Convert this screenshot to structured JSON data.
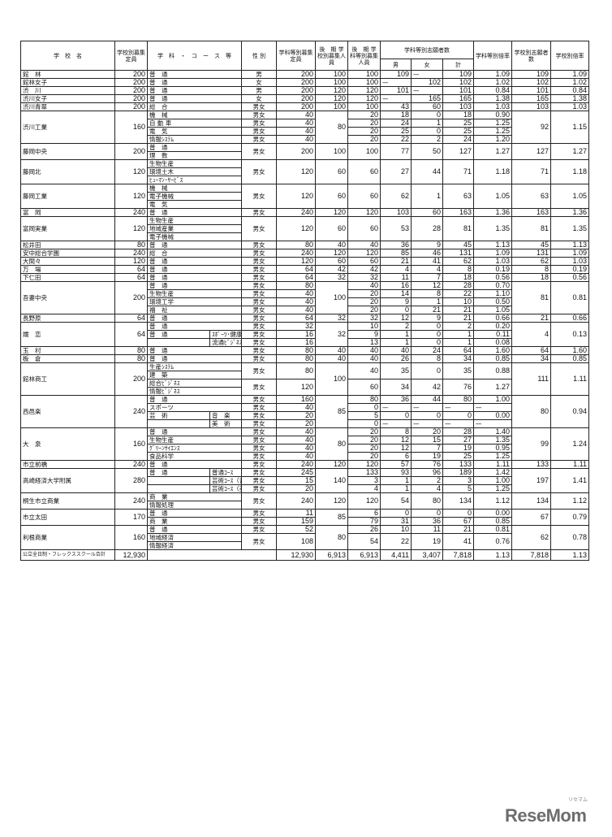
{
  "header": {
    "school_name": "学　校　名",
    "school_quota": "学校別募集定員",
    "subject": "学　科　・　コ　ー　ス　等",
    "sex": "性 別",
    "dept_quota": "学科等別募集定員",
    "late_school": "後　期 学校別募集人員",
    "late_dept": "後　期 学科等別募集人員",
    "applicants": "学科等別志願者数",
    "male": "男",
    "female": "女",
    "total": "計",
    "dept_ratio": "学科等別倍率",
    "school_applicants": "学校別志願者数",
    "school_ratio": "学校別倍率"
  },
  "schools": [
    {
      "name": "館　林",
      "quota": "200",
      "late": "100",
      "apps": "109",
      "ratio": "1.09",
      "groups": [
        {
          "sub": [
            "普　通"
          ],
          "sex": "男",
          "cap": "200",
          "ld": "100",
          "m": "109",
          "f": "—",
          "t": "109",
          "r": "1.09"
        }
      ]
    },
    {
      "name": "館林女子",
      "quota": "200",
      "late": "100",
      "apps": "102",
      "ratio": "1.02",
      "groups": [
        {
          "sub": [
            "普　通"
          ],
          "sex": "女",
          "cap": "200",
          "ld": "100",
          "m": "—",
          "f": "102",
          "t": "102",
          "r": "1.02"
        }
      ]
    },
    {
      "name": "渋　川",
      "quota": "200",
      "late": "120",
      "apps": "101",
      "ratio": "0.84",
      "groups": [
        {
          "sub": [
            "普　通"
          ],
          "sex": "男",
          "cap": "200",
          "ld": "120",
          "m": "101",
          "f": "—",
          "t": "101",
          "r": "0.84"
        }
      ]
    },
    {
      "name": "渋川女子",
      "quota": "200",
      "late": "120",
      "apps": "165",
      "ratio": "1.38",
      "groups": [
        {
          "sub": [
            "普　通"
          ],
          "sex": "女",
          "cap": "200",
          "ld": "120",
          "m": "—",
          "f": "165",
          "t": "165",
          "r": "1.38"
        }
      ]
    },
    {
      "name": "渋川青翠",
      "quota": "200",
      "late": "100",
      "apps": "103",
      "ratio": "1.03",
      "groups": [
        {
          "sub": [
            "総　合"
          ],
          "sex": "男女",
          "cap": "200",
          "ld": "100",
          "m": "43",
          "f": "60",
          "t": "103",
          "r": "1.03"
        }
      ]
    },
    {
      "name": "渋川工業",
      "quota": "160",
      "late": "80",
      "apps": "92",
      "ratio": "1.15",
      "groups": [
        {
          "sub": [
            "機　械"
          ],
          "sex": "男女",
          "cap": "40",
          "ld": "20",
          "m": "18",
          "f": "0",
          "t": "18",
          "r": "0.90"
        },
        {
          "sub": [
            "自 動 車"
          ],
          "sex": "男女",
          "cap": "40",
          "ld": "20",
          "m": "24",
          "f": "1",
          "t": "25",
          "r": "1.25"
        },
        {
          "sub": [
            "電　気"
          ],
          "sex": "男女",
          "cap": "40",
          "ld": "20",
          "m": "25",
          "f": "0",
          "t": "25",
          "r": "1.25"
        },
        {
          "sub": [
            "情報ｼｽﾃﾑ"
          ],
          "sex": "男女",
          "cap": "40",
          "ld": "20",
          "m": "22",
          "f": "2",
          "t": "24",
          "r": "1.20"
        }
      ]
    },
    {
      "name": "藤岡中央",
      "quota": "200",
      "late": "100",
      "apps": "127",
      "ratio": "1.27",
      "groups": [
        {
          "sub": [
            "普　通",
            "理　数"
          ],
          "sex": "男女",
          "cap": "200",
          "ld": "100",
          "m": "77",
          "f": "50",
          "t": "127",
          "r": "1.27"
        }
      ]
    },
    {
      "name": "藤岡北",
      "quota": "120",
      "late": "60",
      "apps": "71",
      "ratio": "1.18",
      "groups": [
        {
          "sub": [
            "生物生産",
            "環境土木",
            "ﾋｭｰﾏﾝ･ｻｰﾋﾞｽ"
          ],
          "sex": "男女",
          "cap": "120",
          "ld": "60",
          "m": "27",
          "f": "44",
          "t": "71",
          "r": "1.18"
        }
      ]
    },
    {
      "name": "藤岡工業",
      "quota": "120",
      "late": "60",
      "apps": "63",
      "ratio": "1.05",
      "groups": [
        {
          "sub": [
            "機　械",
            "電子機械",
            "電　気"
          ],
          "sex": "男女",
          "cap": "120",
          "ld": "60",
          "m": "62",
          "f": "1",
          "t": "63",
          "r": "1.05"
        }
      ]
    },
    {
      "name": "富　岡",
      "quota": "240",
      "late": "120",
      "apps": "163",
      "ratio": "1.36",
      "groups": [
        {
          "sub": [
            "普　通"
          ],
          "sex": "男女",
          "cap": "240",
          "ld": "120",
          "m": "103",
          "f": "60",
          "t": "163",
          "r": "1.36"
        }
      ]
    },
    {
      "name": "富岡実業",
      "quota": "120",
      "late": "60",
      "apps": "81",
      "ratio": "1.35",
      "groups": [
        {
          "sub": [
            "生物生産",
            "地域産業",
            "電子機械"
          ],
          "sex": "男女",
          "cap": "120",
          "ld": "60",
          "m": "53",
          "f": "28",
          "t": "81",
          "r": "1.35"
        }
      ]
    },
    {
      "name": "松井田",
      "quota": "80",
      "late": "40",
      "apps": "45",
      "ratio": "1.13",
      "groups": [
        {
          "sub": [
            "普　通"
          ],
          "sex": "男女",
          "cap": "80",
          "ld": "40",
          "m": "36",
          "f": "9",
          "t": "45",
          "r": "1.13"
        }
      ]
    },
    {
      "name": "安中総合学園",
      "quota": "240",
      "late": "120",
      "apps": "131",
      "ratio": "1.09",
      "groups": [
        {
          "sub": [
            "総　合"
          ],
          "sex": "男女",
          "cap": "240",
          "ld": "120",
          "m": "85",
          "f": "46",
          "t": "131",
          "r": "1.09"
        }
      ]
    },
    {
      "name": "大間々",
      "quota": "120",
      "late": "60",
      "apps": "62",
      "ratio": "1.03",
      "groups": [
        {
          "sub": [
            "普　通"
          ],
          "sex": "男女",
          "cap": "120",
          "ld": "60",
          "m": "21",
          "f": "41",
          "t": "62",
          "r": "1.03"
        }
      ]
    },
    {
      "name": "万　場",
      "quota": "64",
      "late": "42",
      "apps": "8",
      "ratio": "0.19",
      "groups": [
        {
          "sub": [
            "普　通"
          ],
          "sex": "男女",
          "cap": "64",
          "ld": "42",
          "m": "4",
          "f": "4",
          "t": "8",
          "r": "0.19"
        }
      ]
    },
    {
      "name": "下仁田",
      "quota": "64",
      "late": "32",
      "apps": "18",
      "ratio": "0.56",
      "groups": [
        {
          "sub": [
            "普　通"
          ],
          "sex": "男女",
          "cap": "64",
          "ld": "32",
          "m": "11",
          "f": "7",
          "t": "18",
          "r": "0.56"
        }
      ]
    },
    {
      "name": "吾妻中央",
      "quota": "200",
      "late": "100",
      "apps": "81",
      "ratio": "0.81",
      "groups": [
        {
          "sub": [
            "普　通"
          ],
          "sex": "男女",
          "cap": "80",
          "ld": "40",
          "m": "16",
          "f": "12",
          "t": "28",
          "r": "0.70"
        },
        {
          "sub": [
            "生物生産"
          ],
          "sex": "男女",
          "cap": "40",
          "ld": "20",
          "m": "14",
          "f": "8",
          "t": "22",
          "r": "1.10"
        },
        {
          "sub": [
            "環境工学"
          ],
          "sex": "男女",
          "cap": "40",
          "ld": "20",
          "m": "9",
          "f": "1",
          "t": "10",
          "r": "0.50"
        },
        {
          "sub": [
            "福　祉"
          ],
          "sex": "男女",
          "cap": "40",
          "ld": "20",
          "m": "0",
          "f": "21",
          "t": "21",
          "r": "1.05"
        }
      ]
    },
    {
      "name": "長野原",
      "quota": "64",
      "late": "32",
      "apps": "21",
      "ratio": "0.66",
      "groups": [
        {
          "sub": [
            "普　通"
          ],
          "sex": "男女",
          "cap": "64",
          "ld": "32",
          "m": "12",
          "f": "9",
          "t": "21",
          "r": "0.66"
        }
      ]
    },
    {
      "name": "嬬　恋",
      "quota": "64",
      "late": "32",
      "apps": "4",
      "ratio": "0.13",
      "groups": [
        {
          "sub": [
            "普　通"
          ],
          "sex": "男女",
          "cap": "32",
          "ld": "10",
          "m": "2",
          "f": "0",
          "t": "2",
          "r": "0.20"
        },
        {
          "sub": [
            "普　通"
          ],
          "course": "ｽﾎﾟｰﾂ･健康",
          "sex": "男女",
          "cap": "16",
          "ld": "9",
          "m": "1",
          "f": "0",
          "t": "1",
          "r": "0.11"
        },
        {
          "sub": [
            ""
          ],
          "cont": true,
          "course": "流通ﾋﾞｼﾞﾈｽ",
          "sex": "男女",
          "cap": "16",
          "ld": "13",
          "m": "1",
          "f": "0",
          "t": "1",
          "r": "0.08"
        }
      ]
    },
    {
      "name": "玉　村",
      "quota": "80",
      "late": "40",
      "apps": "64",
      "ratio": "1.60",
      "groups": [
        {
          "sub": [
            "普　通"
          ],
          "sex": "男女",
          "cap": "80",
          "ld": "40",
          "m": "40",
          "f": "24",
          "t": "64",
          "r": "1.60"
        }
      ]
    },
    {
      "name": "板　倉",
      "quota": "80",
      "late": "40",
      "apps": "34",
      "ratio": "0.85",
      "groups": [
        {
          "sub": [
            "普　通"
          ],
          "sex": "男女",
          "cap": "80",
          "ld": "40",
          "m": "26",
          "f": "8",
          "t": "34",
          "r": "0.85"
        }
      ]
    },
    {
      "name": "館林商工",
      "quota": "200",
      "late": "100",
      "apps": "111",
      "ratio": "1.11",
      "groups": [
        {
          "sub": [
            "生産ｼｽﾃﾑ",
            "建　築"
          ],
          "sex": "男女",
          "cap": "80",
          "ld": "40",
          "m": "35",
          "f": "0",
          "t": "35",
          "r": "0.88"
        },
        {
          "sub": [
            "総合ﾋﾞｼﾞﾈｽ",
            "情報ﾋﾞｼﾞﾈｽ"
          ],
          "sex": "男女",
          "cap": "120",
          "ld": "60",
          "m": "34",
          "f": "42",
          "t": "76",
          "r": "1.27"
        }
      ]
    },
    {
      "name": "西邑楽",
      "quota": "240",
      "late": "85",
      "apps": "80",
      "ratio": "0.94",
      "groups": [
        {
          "sub": [
            "普　通"
          ],
          "sex": "男女",
          "cap": "160",
          "ld": "80",
          "m": "36",
          "f": "44",
          "t": "80",
          "r": "1.00"
        },
        {
          "sub": [
            "スポーツ"
          ],
          "sex": "男女",
          "cap": "40",
          "ld": "0",
          "m": "—",
          "f": "—",
          "t": "—",
          "r": "—"
        },
        {
          "sub": [
            "芸　術"
          ],
          "course": "音　楽",
          "sex": "男女",
          "cap": "20",
          "ld": "5",
          "m": "0",
          "f": "0",
          "t": "0",
          "r": "0.00"
        },
        {
          "sub": [
            ""
          ],
          "cont": true,
          "course": "美　術",
          "sex": "男女",
          "cap": "20",
          "ld": "0",
          "m": "—",
          "f": "—",
          "t": "—",
          "r": "—"
        }
      ]
    },
    {
      "name": "大　泉",
      "quota": "160",
      "late": "80",
      "apps": "99",
      "ratio": "1.24",
      "groups": [
        {
          "sub": [
            "普　通"
          ],
          "sex": "男女",
          "cap": "40",
          "ld": "20",
          "m": "8",
          "f": "20",
          "t": "28",
          "r": "1.40"
        },
        {
          "sub": [
            "生物生産"
          ],
          "sex": "男女",
          "cap": "40",
          "ld": "20",
          "m": "12",
          "f": "15",
          "t": "27",
          "r": "1.35"
        },
        {
          "sub": [
            "ｸﾞﾘｰﾝｻｲｴﾝｽ"
          ],
          "sex": "男女",
          "cap": "40",
          "ld": "20",
          "m": "12",
          "f": "7",
          "t": "19",
          "r": "0.95"
        },
        {
          "sub": [
            "食品科学"
          ],
          "sex": "男女",
          "cap": "40",
          "ld": "20",
          "m": "6",
          "f": "19",
          "t": "25",
          "r": "1.25"
        }
      ]
    },
    {
      "name": "市立前橋",
      "quota": "240",
      "late": "120",
      "apps": "133",
      "ratio": "1.11",
      "groups": [
        {
          "sub": [
            "普　通"
          ],
          "sex": "男女",
          "cap": "240",
          "ld": "120",
          "m": "57",
          "f": "76",
          "t": "133",
          "r": "1.11"
        }
      ]
    },
    {
      "name": "高崎経済大学附属",
      "quota": "280",
      "late": "140",
      "apps": "197",
      "ratio": "1.41",
      "groups": [
        {
          "sub": [
            "普　通"
          ],
          "course": "普通ｺｰｽ",
          "sex": "男女",
          "cap": "245",
          "ld": "133",
          "m": "93",
          "f": "96",
          "t": "189",
          "r": "1.42"
        },
        {
          "sub": [
            ""
          ],
          "cont": true,
          "course": "芸術ｺｰｽ（音楽系）",
          "sex": "男女",
          "cap": "15",
          "ld": "3",
          "m": "1",
          "f": "2",
          "t": "3",
          "r": "1.00"
        },
        {
          "sub": [
            ""
          ],
          "cont": true,
          "course": "芸術ｺｰｽ（美術系）",
          "sex": "男女",
          "cap": "20",
          "ld": "4",
          "m": "1",
          "f": "4",
          "t": "5",
          "r": "1.25"
        }
      ]
    },
    {
      "name": "桐生市立商業",
      "quota": "240",
      "late": "120",
      "apps": "134",
      "ratio": "1.12",
      "groups": [
        {
          "sub": [
            "商　業",
            "情報処理"
          ],
          "sex": "男女",
          "cap": "240",
          "ld": "120",
          "m": "54",
          "f": "80",
          "t": "134",
          "r": "1.12"
        }
      ]
    },
    {
      "name": "市立太田",
      "quota": "170",
      "late": "85",
      "apps": "67",
      "ratio": "0.79",
      "groups": [
        {
          "sub": [
            "普　通"
          ],
          "sex": "男女",
          "cap": "11",
          "ld": "6",
          "m": "0",
          "f": "0",
          "t": "0",
          "r": "0.00"
        },
        {
          "sub": [
            "商　業"
          ],
          "sex": "男女",
          "cap": "159",
          "ld": "79",
          "m": "31",
          "f": "36",
          "t": "67",
          "r": "0.85"
        }
      ]
    },
    {
      "name": "利根商業",
      "quota": "160",
      "late": "80",
      "apps": "62",
      "ratio": "0.78",
      "groups": [
        {
          "sub": [
            "普　通"
          ],
          "sex": "男女",
          "cap": "52",
          "ld": "26",
          "m": "10",
          "f": "11",
          "t": "21",
          "r": "0.81"
        },
        {
          "sub": [
            "地域経済",
            "情報経済"
          ],
          "sex": "男女",
          "cap": "108",
          "ld": "54",
          "m": "22",
          "f": "19",
          "t": "41",
          "r": "0.76"
        }
      ]
    }
  ],
  "total": {
    "label": "公立全日制・フレックススクール合計",
    "quota": "12,930",
    "cap": "12,930",
    "late": "6,913",
    "ld": "6,913",
    "m": "4,411",
    "f": "3,407",
    "t": "7,818",
    "r": "1.13",
    "apps": "7,818",
    "ratio": "1.13"
  },
  "logo": {
    "text": "ReseMom",
    "sub": "リセマム"
  }
}
